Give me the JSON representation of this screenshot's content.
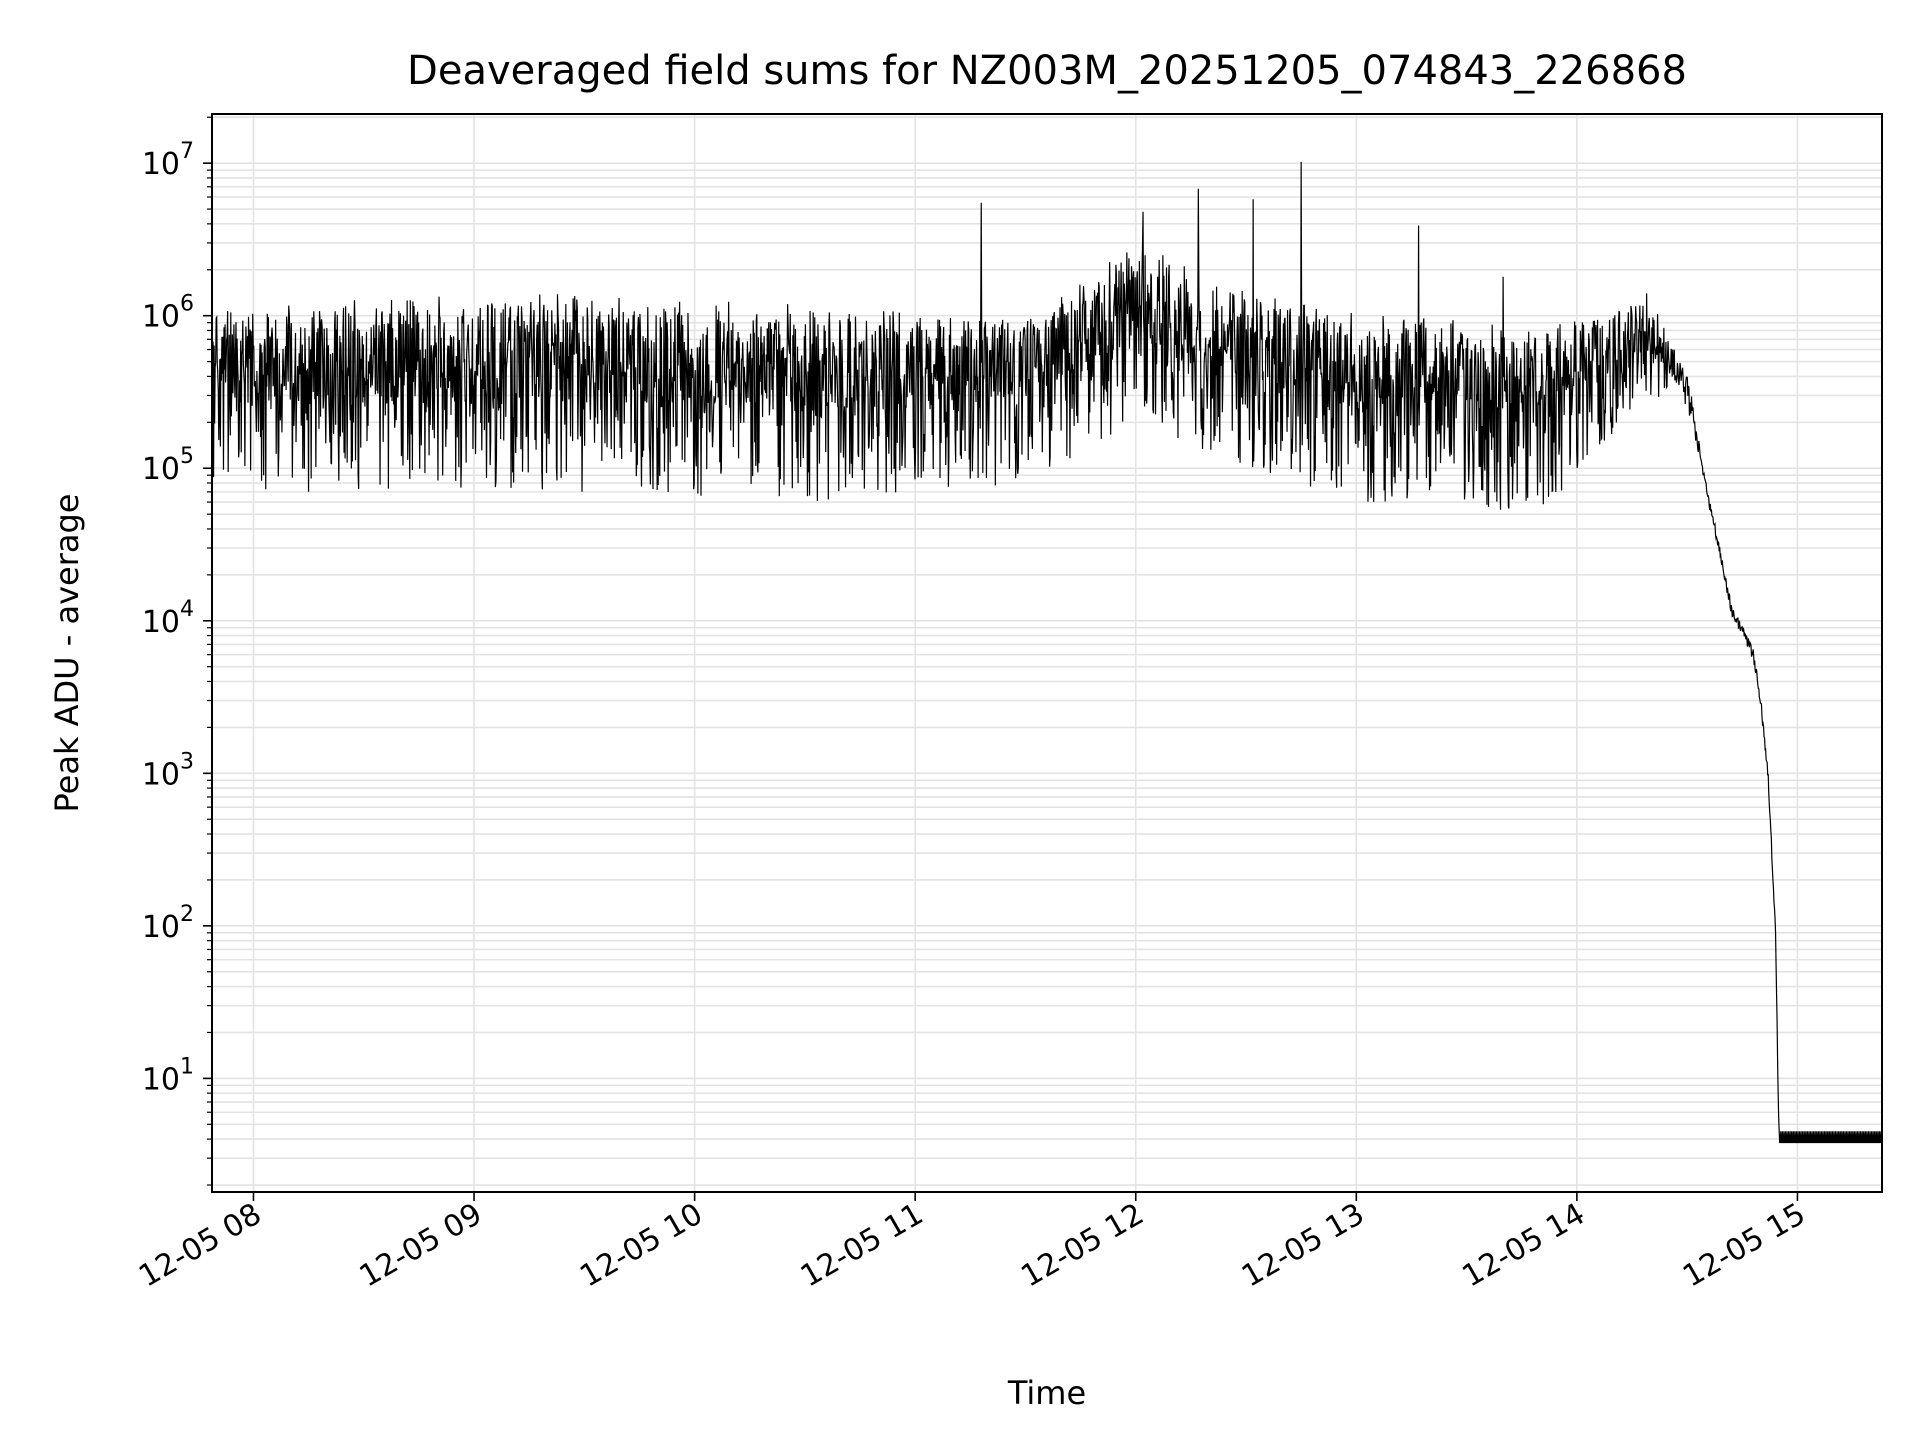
{
  "chart_data": {
    "type": "line",
    "title": "Deaveraged field sums for NZ003M_20251205_074843_226868",
    "xlabel": "Time",
    "ylabel": "Peak ADU - average",
    "x_ticks": [
      "2025-12-05T08:00",
      "2025-12-05T09:00",
      "2025-12-05T10:00",
      "2025-12-05T11:00",
      "2025-12-05T12:00",
      "2025-12-05T13:00",
      "2025-12-05T14:00",
      "2025-12-05T15:00"
    ],
    "x_tick_labels": [
      "12-05 08",
      "12-05 09",
      "12-05 10",
      "12-05 11",
      "12-05 12",
      "12-05 13",
      "12-05 14",
      "12-05 15"
    ],
    "xlim": [
      "2025-12-05T07:48:43",
      "2025-12-05T15:23:00"
    ],
    "y_scale": "log",
    "ylim": [
      1.8,
      21000000
    ],
    "y_ticks": [
      10,
      100,
      1000,
      10000,
      100000,
      1000000,
      10000000
    ],
    "y_tick_labels": [
      {
        "base": "10",
        "exp": "1"
      },
      {
        "base": "10",
        "exp": "2"
      },
      {
        "base": "10",
        "exp": "3"
      },
      {
        "base": "10",
        "exp": "4"
      },
      {
        "base": "10",
        "exp": "5"
      },
      {
        "base": "10",
        "exp": "6"
      },
      {
        "base": "10",
        "exp": "7"
      }
    ],
    "grid": true,
    "series": [
      {
        "color": "#000000",
        "profile": [
          {
            "x": "2025-12-05T07:48:43",
            "y": 400000,
            "spread": [
              70000,
              1100000
            ]
          },
          {
            "x": "2025-12-05T08:30:00",
            "y": 400000,
            "spread": [
              70000,
              1300000
            ]
          },
          {
            "x": "2025-12-05T09:30:00",
            "y": 450000,
            "spread": [
              70000,
              1400000
            ]
          },
          {
            "x": "2025-12-05T10:30:00",
            "y": 350000,
            "spread": [
              60000,
              1200000
            ]
          },
          {
            "x": "2025-12-05T11:30:00",
            "y": 400000,
            "spread": [
              80000,
              900000
            ]
          },
          {
            "x": "2025-12-05T12:00:00",
            "y": 900000,
            "spread": [
              200000,
              3000000
            ]
          },
          {
            "x": "2025-12-05T12:30:00",
            "y": 550000,
            "spread": [
              100000,
              1500000
            ]
          },
          {
            "x": "2025-12-05T13:00:00",
            "y": 400000,
            "spread": [
              60000,
              900000
            ]
          },
          {
            "x": "2025-12-05T13:50:00",
            "y": 350000,
            "spread": [
              50000,
              700000
            ]
          },
          {
            "x": "2025-12-05T14:20:00",
            "y": 600000,
            "spread": [
              300000,
              1300000
            ]
          },
          {
            "x": "2025-12-05T14:30:00",
            "y": 350000,
            "spread": [
              250000,
              450000
            ]
          },
          {
            "x": "2025-12-05T14:36:00",
            "y": 60000
          },
          {
            "x": "2025-12-05T14:42:00",
            "y": 12000
          },
          {
            "x": "2025-12-05T14:48:00",
            "y": 6000
          },
          {
            "x": "2025-12-05T14:50:00",
            "y": 3000
          },
          {
            "x": "2025-12-05T14:52:00",
            "y": 1000
          },
          {
            "x": "2025-12-05T14:54:00",
            "y": 100
          },
          {
            "x": "2025-12-05T14:55:00",
            "y": 3.8
          },
          {
            "x": "2025-12-05T15:23:00",
            "y": 3.8
          }
        ],
        "spikes": [
          {
            "x": "2025-12-05T11:18:00",
            "y": 5500000
          },
          {
            "x": "2025-12-05T12:02:00",
            "y": 4800000
          },
          {
            "x": "2025-12-05T12:17:00",
            "y": 6800000
          },
          {
            "x": "2025-12-05T12:32:00",
            "y": 5800000
          },
          {
            "x": "2025-12-05T12:45:00",
            "y": 10200000
          },
          {
            "x": "2025-12-05T13:17:00",
            "y": 3900000
          },
          {
            "x": "2025-12-05T13:40:00",
            "y": 1800000
          },
          {
            "x": "2025-12-05T14:19:00",
            "y": 1400000
          }
        ]
      }
    ]
  }
}
